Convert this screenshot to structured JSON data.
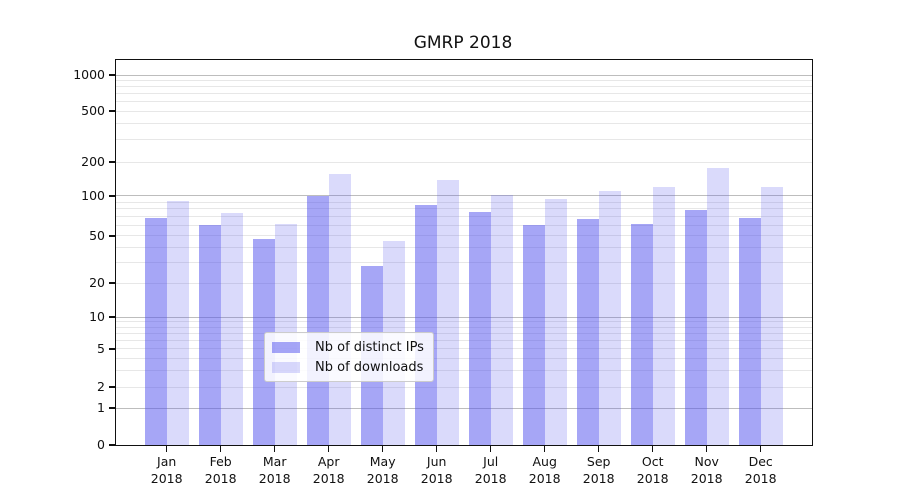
{
  "title": "GMRP 2018",
  "chart_data": {
    "type": "bar",
    "title": "GMRP 2018",
    "categories": [
      "Jan 2018",
      "Feb 2018",
      "Mar 2018",
      "Apr 2018",
      "May 2018",
      "Jun 2018",
      "Jul 2018",
      "Aug 2018",
      "Sep 2018",
      "Oct 2018",
      "Nov 2018",
      "Dec 2018"
    ],
    "series": [
      {
        "name": "Nb of distinct IPs",
        "color": "rgba(85,85,238,0.52)",
        "values": [
          68,
          60,
          47,
          101,
          28,
          86,
          76,
          60,
          67,
          62,
          79,
          68
        ]
      },
      {
        "name": "Nb of downloads",
        "color": "rgba(85,85,238,0.215)",
        "values": [
          91,
          74,
          62,
          158,
          45,
          139,
          103,
          95,
          110,
          119,
          176,
          119
        ]
      }
    ],
    "yscale": "symlog",
    "ylim": [
      0,
      1000
    ],
    "yticks": [
      0,
      1,
      2,
      5,
      10,
      20,
      50,
      100,
      200,
      500,
      1000
    ],
    "grid": true,
    "legend_position": "lower-center",
    "xlabel": "",
    "ylabel": ""
  }
}
